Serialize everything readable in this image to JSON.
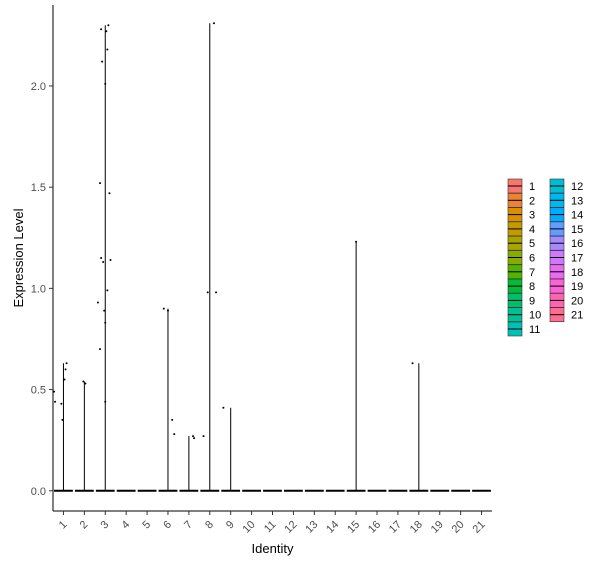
{
  "chart_data": {
    "type": "violin",
    "xlabel": "Identity",
    "ylabel": "Expression Level",
    "ylim": [
      -0.1,
      2.4
    ],
    "yticks": [
      0.0,
      0.5,
      1.0,
      1.5,
      2.0
    ],
    "ytick_labels": [
      "0.0",
      "0.5",
      "1.0",
      "1.5",
      "2.0"
    ],
    "categories": [
      "1",
      "2",
      "3",
      "4",
      "5",
      "6",
      "7",
      "8",
      "9",
      "10",
      "11",
      "12",
      "13",
      "14",
      "15",
      "16",
      "17",
      "18",
      "19",
      "20",
      "21"
    ],
    "colors": [
      "#F8766D",
      "#EB8335",
      "#DA8F00",
      "#C49A00",
      "#A9A400",
      "#86AC00",
      "#53B400",
      "#00BA38",
      "#00BE6D",
      "#00C094",
      "#00C0B7",
      "#00BDD5",
      "#00B7EE",
      "#00ACFC",
      "#619CFF",
      "#A58AFF",
      "#CF78FF",
      "#EA6BEF",
      "#FA62D5",
      "#FF64B3",
      "#FF6C91"
    ],
    "violin_max": [
      0.63,
      0.54,
      2.3,
      0.0,
      0.0,
      0.9,
      0.27,
      2.31,
      0.41,
      0.0,
      0.0,
      0.0,
      0.0,
      0.0,
      1.23,
      0.0,
      0.0,
      0.63,
      0.0,
      0.0,
      0.0
    ],
    "points": [
      [
        [
          -0.45,
          0.49
        ],
        [
          -0.4,
          0.44
        ],
        [
          -0.1,
          0.43
        ],
        [
          -0.05,
          0.35
        ],
        [
          0.05,
          0.55
        ],
        [
          0.1,
          0.6
        ],
        [
          0.15,
          0.63
        ]
      ],
      [
        [
          -0.05,
          0.54
        ],
        [
          0.05,
          0.53
        ]
      ],
      [
        [
          -0.2,
          2.28
        ],
        [
          0.05,
          2.27
        ],
        [
          0.15,
          2.3
        ],
        [
          -0.15,
          2.12
        ],
        [
          0.1,
          2.18
        ],
        [
          0.0,
          2.01
        ],
        [
          -0.25,
          1.52
        ],
        [
          0.2,
          1.47
        ],
        [
          -0.2,
          1.15
        ],
        [
          -0.1,
          1.13
        ],
        [
          0.25,
          1.14
        ],
        [
          0.1,
          0.99
        ],
        [
          -0.35,
          0.93
        ],
        [
          -0.05,
          0.89
        ],
        [
          0.0,
          0.83
        ],
        [
          -0.25,
          0.7
        ],
        [
          0.0,
          0.44
        ]
      ],
      [],
      [],
      [
        [
          -0.2,
          0.9
        ],
        [
          0.0,
          0.89
        ],
        [
          0.2,
          0.35
        ],
        [
          0.3,
          0.28
        ]
      ],
      [
        [
          0.2,
          0.27
        ],
        [
          0.25,
          0.26
        ]
      ],
      [
        [
          -0.3,
          0.27
        ],
        [
          -0.1,
          0.98
        ],
        [
          0.3,
          0.98
        ],
        [
          0.2,
          2.31
        ]
      ],
      [
        [
          -0.35,
          0.41
        ]
      ],
      [],
      [],
      [],
      [],
      [],
      [
        [
          0.0,
          1.23
        ]
      ],
      [],
      [],
      [
        [
          -0.3,
          0.63
        ]
      ],
      [],
      [],
      []
    ],
    "legend": {
      "placement": "right",
      "column1": [
        "1",
        "2",
        "3",
        "4",
        "5",
        "6",
        "7",
        "8",
        "9",
        "10",
        "11"
      ],
      "column2": [
        "12",
        "13",
        "14",
        "15",
        "16",
        "17",
        "18",
        "19",
        "20",
        "21"
      ]
    }
  }
}
